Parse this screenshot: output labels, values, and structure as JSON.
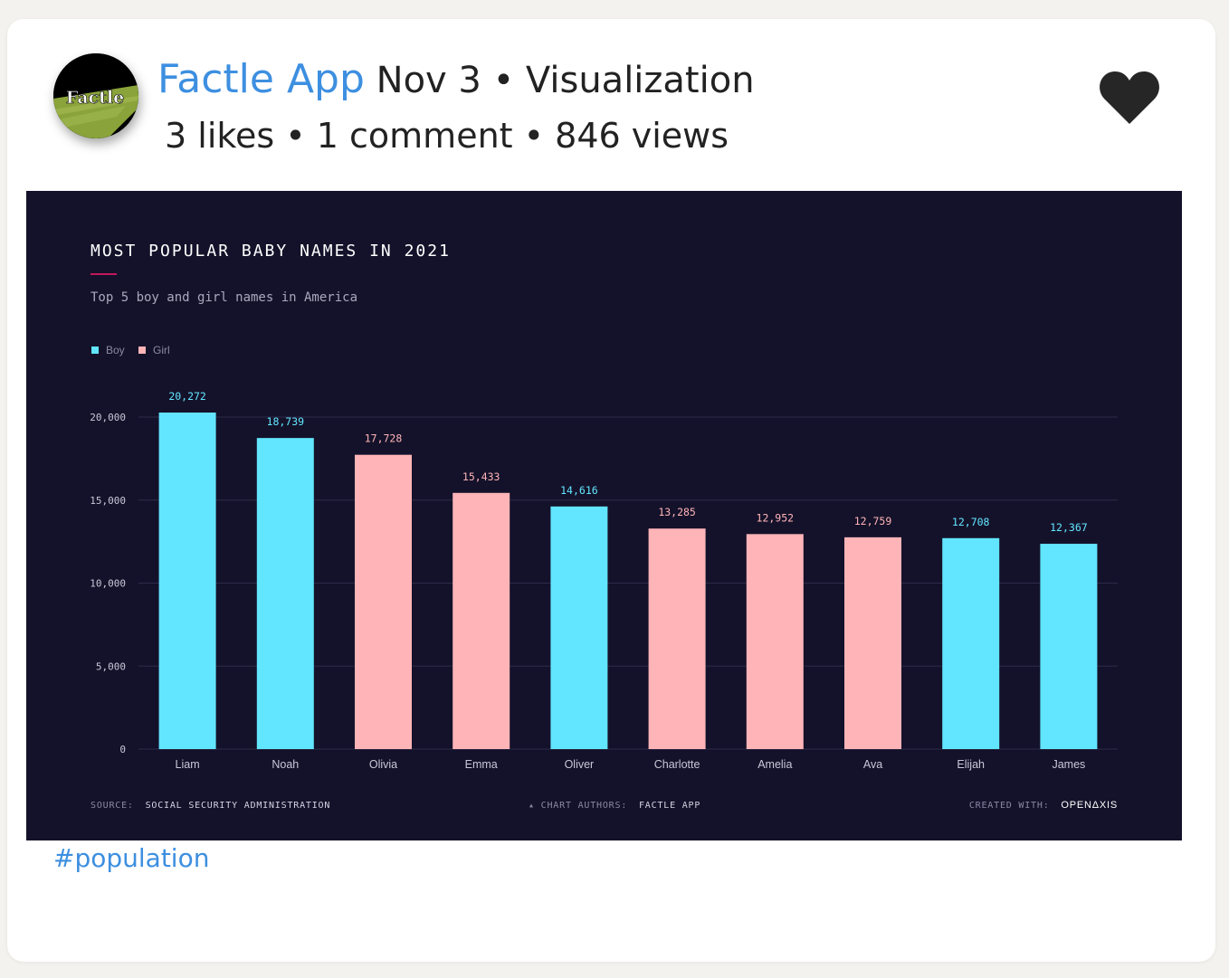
{
  "post": {
    "author": "Factle App",
    "date_category": "Nov 3 • Visualization",
    "stats": "3 likes • 1 comment • 846 views",
    "hashtag": "#population",
    "avatar_text": "Factle",
    "like_icon": "heart-icon"
  },
  "colors": {
    "boy": "#62e5ff",
    "girl": "#ffb4b7",
    "panel_bg": "#14122a",
    "accent": "#3d8fe0"
  },
  "chart_data": {
    "type": "bar",
    "title": "MOST POPULAR BABY NAMES IN 2021",
    "subtitle": "Top 5 boy and girl names in America",
    "legend": [
      {
        "label": "Boy",
        "key": "boy"
      },
      {
        "label": "Girl",
        "key": "girl"
      }
    ],
    "legend_position": "top-left",
    "categories": [
      "Liam",
      "Noah",
      "Olivia",
      "Emma",
      "Oliver",
      "Charlotte",
      "Amelia",
      "Ava",
      "Elijah",
      "James"
    ],
    "values": [
      20272,
      18739,
      17728,
      15433,
      14616,
      13285,
      12952,
      12759,
      12708,
      12367
    ],
    "value_labels": [
      "20,272",
      "18,739",
      "17,728",
      "15,433",
      "14,616",
      "13,285",
      "12,952",
      "12,759",
      "12,708",
      "12,367"
    ],
    "groups": [
      "boy",
      "boy",
      "girl",
      "girl",
      "boy",
      "girl",
      "girl",
      "girl",
      "boy",
      "boy"
    ],
    "yticks": [
      0,
      5000,
      10000,
      15000,
      20000
    ],
    "ytick_labels": [
      "0",
      "5,000",
      "10,000",
      "15,000",
      "20,000"
    ],
    "ylim": [
      0,
      20000
    ],
    "grid": true,
    "xlabel": "",
    "ylabel": "",
    "footer": {
      "source_label": "SOURCE:",
      "source_value": "SOCIAL SECURITY ADMINISTRATION",
      "authors_label": "CHART AUTHORS:",
      "authors_value": "FACTLE APP",
      "created_label": "CREATED WITH:",
      "created_value": "OPENΔXIS"
    }
  }
}
